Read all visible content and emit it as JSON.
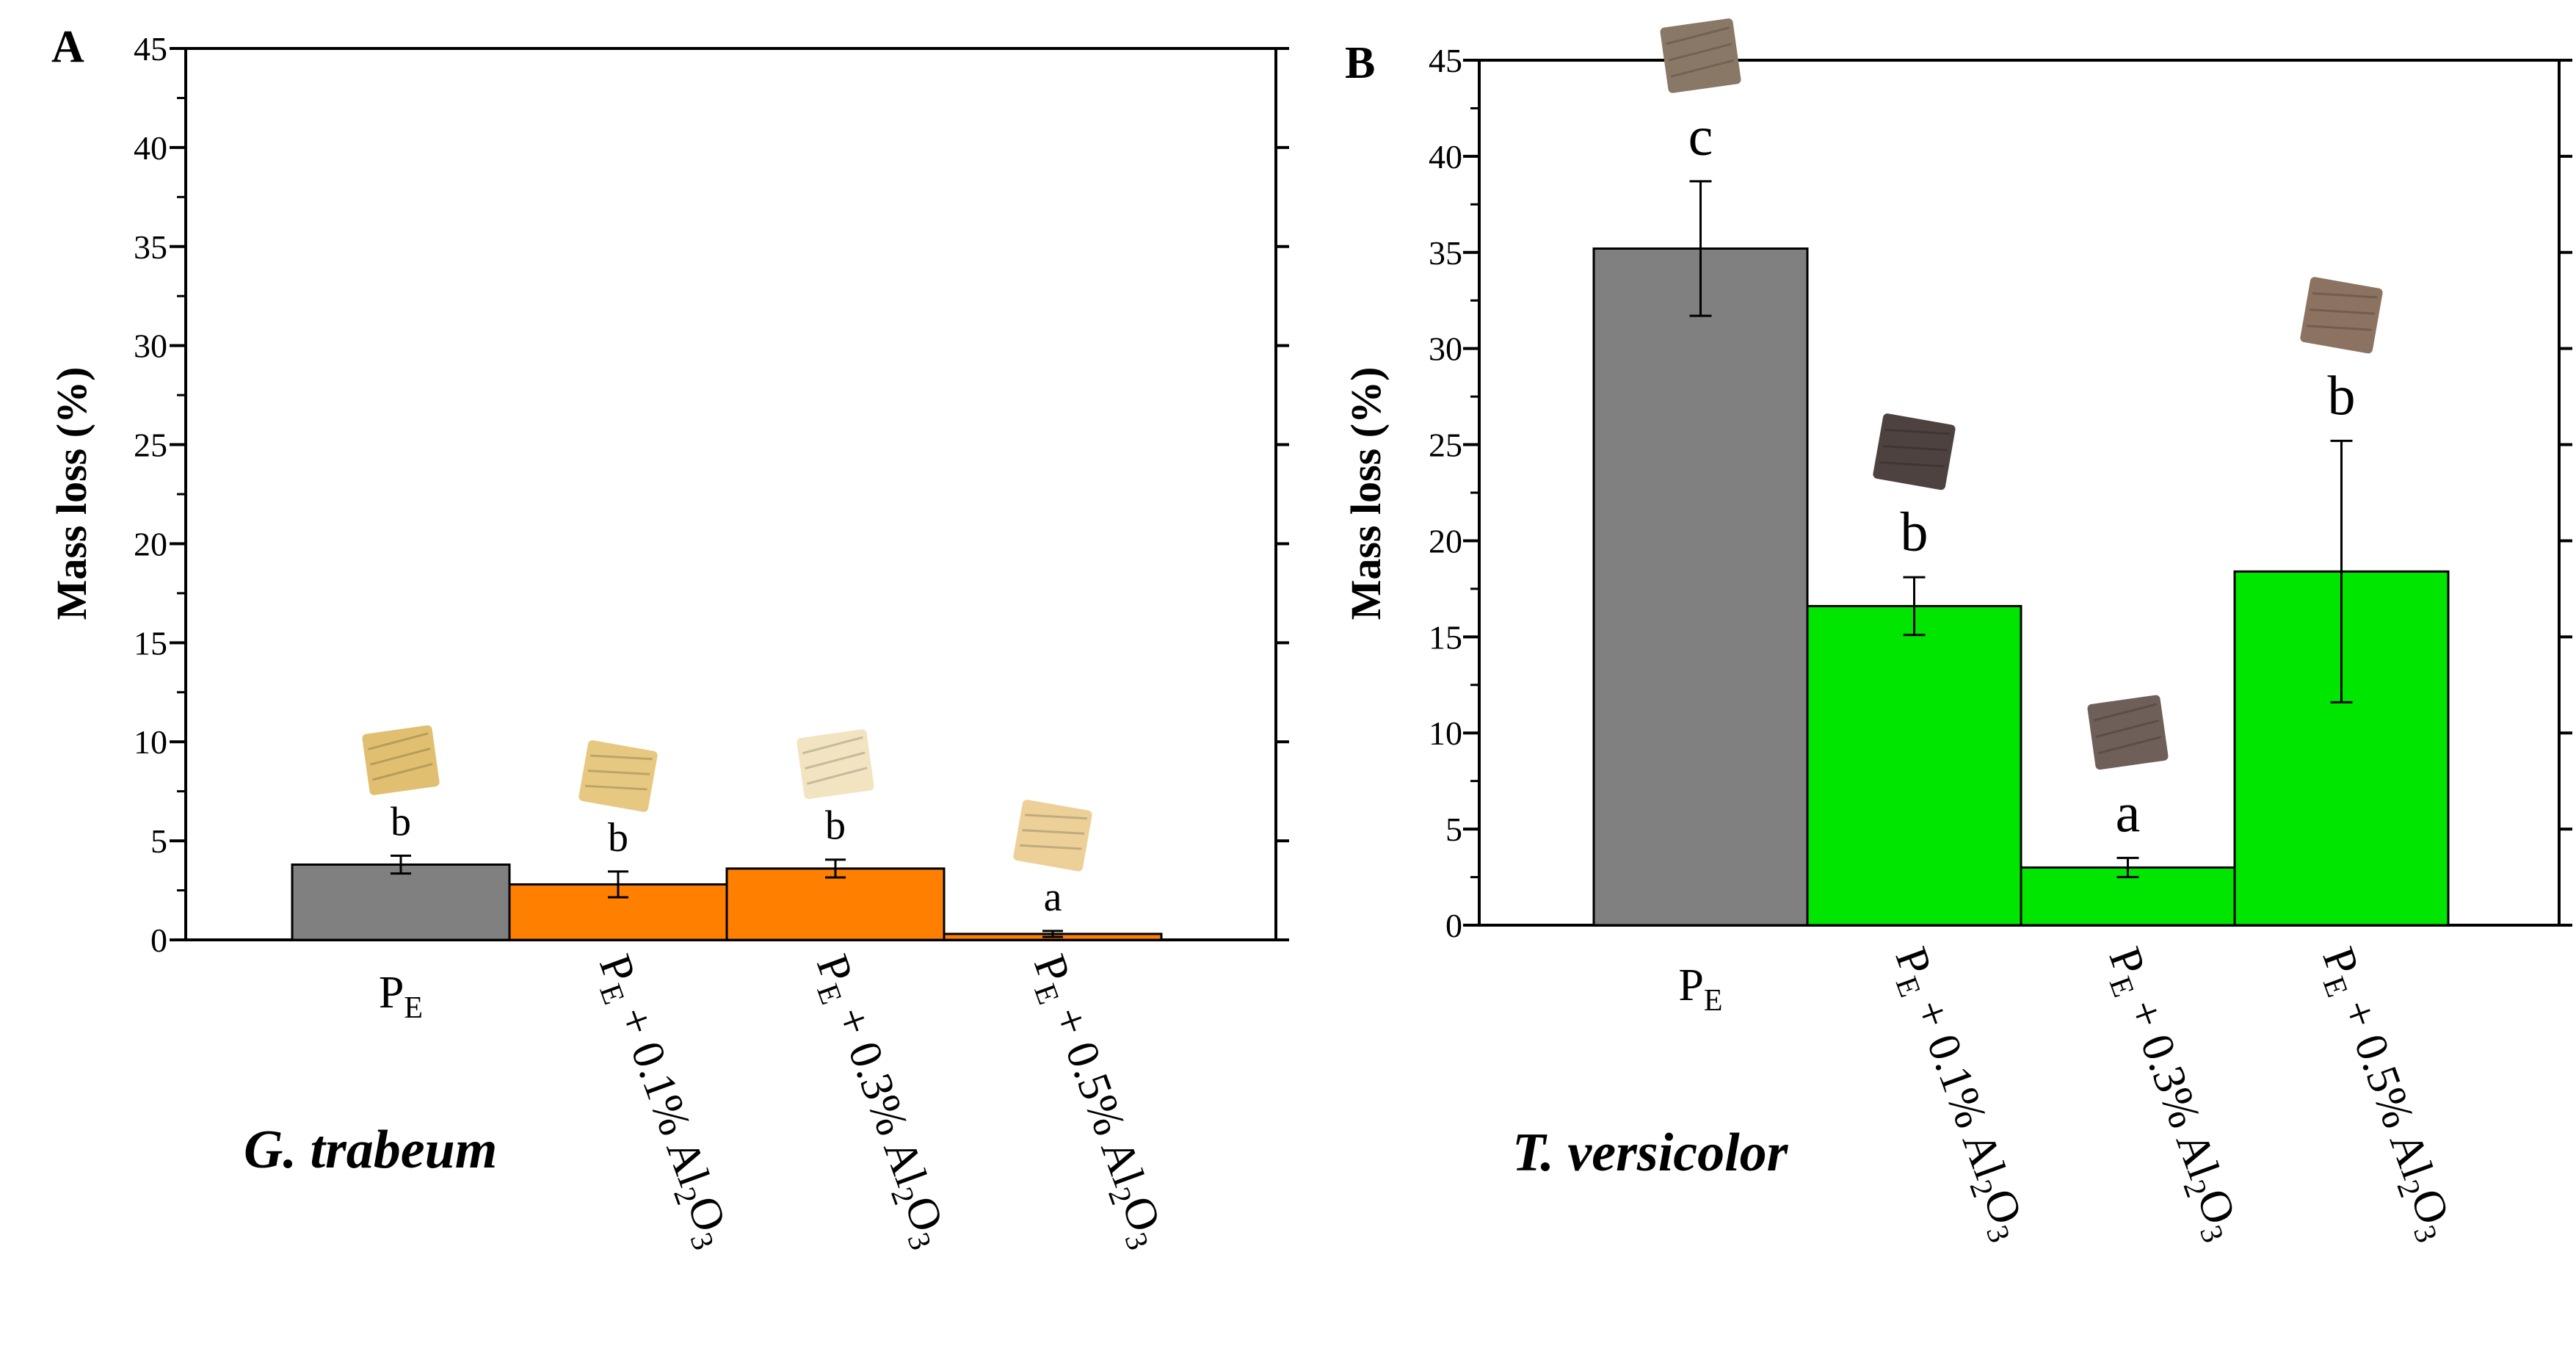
{
  "chart_data": [
    {
      "type": "bar",
      "panel": "A",
      "organism": "G. trabeum",
      "ylabel": "Mass loss (%)",
      "ylim": [
        0,
        45
      ],
      "yticks": [
        0,
        5,
        10,
        15,
        20,
        25,
        30,
        35,
        40,
        45
      ],
      "categories": [
        {
          "main": "P",
          "sub": "E",
          "suffix": "",
          "post": ""
        },
        {
          "main": "P",
          "sub": "E",
          "suffix": " + 0.1% Al",
          "post": "O"
        },
        {
          "main": "P",
          "sub": "E",
          "suffix": " + 0.3% Al",
          "post": "O"
        },
        {
          "main": "P",
          "sub": "E",
          "suffix": " + 0.5% Al",
          "post": "O"
        }
      ],
      "category_sub2": "2",
      "category_sub3": "3",
      "values": [
        3.8,
        2.8,
        3.6,
        0.3
      ],
      "errors": [
        0.45,
        0.65,
        0.45,
        0.15
      ],
      "significance": [
        "b",
        "b",
        "b",
        "a"
      ],
      "colors": [
        "#808080",
        "#ff8000",
        "#ff8000",
        "#ff8000"
      ]
    },
    {
      "type": "bar",
      "panel": "B",
      "organism": "T. versicolor",
      "ylabel": "Mass loss (%)",
      "ylim": [
        0,
        45
      ],
      "yticks": [
        0,
        5,
        10,
        15,
        20,
        25,
        30,
        35,
        40,
        45
      ],
      "categories": [
        {
          "main": "P",
          "sub": "E",
          "suffix": "",
          "post": ""
        },
        {
          "main": "P",
          "sub": "E",
          "suffix": " + 0.1% Al",
          "post": "O"
        },
        {
          "main": "P",
          "sub": "E",
          "suffix": " + 0.3% Al",
          "post": "O"
        },
        {
          "main": "P",
          "sub": "E",
          "suffix": " + 0.5% Al",
          "post": "O"
        }
      ],
      "category_sub2": "2",
      "category_sub3": "3",
      "values": [
        35.2,
        16.6,
        3.0,
        18.4
      ],
      "errors": [
        3.5,
        1.5,
        0.5,
        6.8
      ],
      "significance": [
        "c",
        "b",
        "a",
        "b"
      ],
      "colors": [
        "#808080",
        "#00e600",
        "#00e600",
        "#00e600"
      ]
    }
  ],
  "sample_photos": {
    "panel_a_colors": [
      "#e0c070",
      "#e6c880",
      "#f2e4c0",
      "#ecd098"
    ],
    "panel_b_colors": [
      "#8a7866",
      "#4e4240",
      "#6e6058",
      "#8c7260"
    ]
  }
}
